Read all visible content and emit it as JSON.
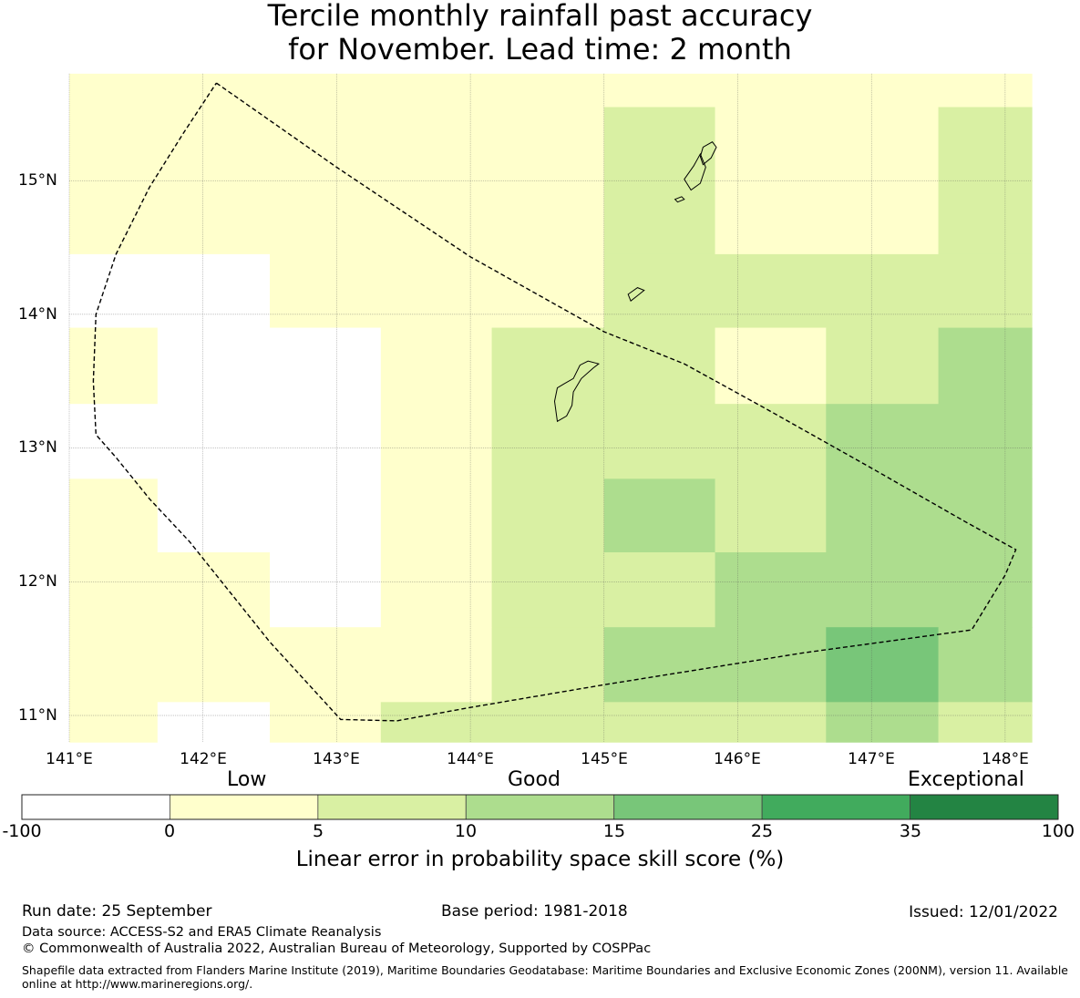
{
  "title_line1": "Tercile monthly rainfall past accuracy",
  "title_line2": "for November. Lead time: 2 month",
  "map": {
    "lon_labels": [
      "141°E",
      "142°E",
      "143°E",
      "144°E",
      "145°E",
      "146°E",
      "147°E",
      "148°E"
    ],
    "lat_labels": [
      "15°N",
      "14°N",
      "13°N",
      "12°N",
      "11°N"
    ],
    "extent": {
      "lon_min": 141.0,
      "lon_max": 148.2,
      "lat_min": 10.8,
      "lat_max": 15.8
    },
    "grid_cells": [
      {
        "lon0": 141.0,
        "lon1": 145.0,
        "lat0": 14.45,
        "lat1": 15.8,
        "score": 3
      },
      {
        "lon0": 145.0,
        "lon1": 148.2,
        "lat0": 15.55,
        "lat1": 15.8,
        "score": 3
      },
      {
        "lon0": 145.0,
        "lon1": 145.83,
        "lat0": 14.45,
        "lat1": 15.55,
        "score": 8
      },
      {
        "lon0": 145.83,
        "lon1": 147.5,
        "lat0": 14.45,
        "lat1": 15.55,
        "score": 3
      },
      {
        "lon0": 147.5,
        "lon1": 148.2,
        "lat0": 14.45,
        "lat1": 15.55,
        "score": 8
      },
      {
        "lon0": 141.0,
        "lon1": 142.5,
        "lat0": 13.9,
        "lat1": 14.45,
        "score": -5
      },
      {
        "lon0": 142.5,
        "lon1": 145.0,
        "lat0": 13.9,
        "lat1": 14.45,
        "score": 3
      },
      {
        "lon0": 145.0,
        "lon1": 148.2,
        "lat0": 13.9,
        "lat1": 14.45,
        "score": 8
      },
      {
        "lon0": 141.0,
        "lon1": 141.66,
        "lat0": 13.33,
        "lat1": 13.9,
        "score": 3
      },
      {
        "lon0": 141.66,
        "lon1": 143.33,
        "lat0": 13.33,
        "lat1": 13.9,
        "score": -5
      },
      {
        "lon0": 143.33,
        "lon1": 144.16,
        "lat0": 13.33,
        "lat1": 13.9,
        "score": 3
      },
      {
        "lon0": 144.16,
        "lon1": 145.83,
        "lat0": 13.33,
        "lat1": 13.9,
        "score": 8
      },
      {
        "lon0": 145.83,
        "lon1": 146.66,
        "lat0": 13.33,
        "lat1": 13.9,
        "score": 3
      },
      {
        "lon0": 146.66,
        "lon1": 147.5,
        "lat0": 13.33,
        "lat1": 13.9,
        "score": 8
      },
      {
        "lon0": 147.5,
        "lon1": 148.2,
        "lat0": 13.33,
        "lat1": 13.9,
        "score": 12
      },
      {
        "lon0": 141.0,
        "lon1": 143.33,
        "lat0": 12.77,
        "lat1": 13.33,
        "score": -5
      },
      {
        "lon0": 143.33,
        "lon1": 144.16,
        "lat0": 12.77,
        "lat1": 13.33,
        "score": 3
      },
      {
        "lon0": 144.16,
        "lon1": 146.66,
        "lat0": 12.77,
        "lat1": 13.33,
        "score": 8
      },
      {
        "lon0": 146.66,
        "lon1": 148.2,
        "lat0": 12.77,
        "lat1": 13.33,
        "score": 12
      },
      {
        "lon0": 141.0,
        "lon1": 141.66,
        "lat0": 12.22,
        "lat1": 12.77,
        "score": 3
      },
      {
        "lon0": 141.66,
        "lon1": 143.33,
        "lat0": 12.22,
        "lat1": 12.77,
        "score": -5
      },
      {
        "lon0": 143.33,
        "lon1": 144.16,
        "lat0": 12.22,
        "lat1": 12.77,
        "score": 3
      },
      {
        "lon0": 144.16,
        "lon1": 145.0,
        "lat0": 12.22,
        "lat1": 12.77,
        "score": 8
      },
      {
        "lon0": 145.0,
        "lon1": 145.83,
        "lat0": 12.22,
        "lat1": 12.77,
        "score": 12
      },
      {
        "lon0": 145.83,
        "lon1": 146.66,
        "lat0": 12.22,
        "lat1": 12.77,
        "score": 8
      },
      {
        "lon0": 146.66,
        "lon1": 148.2,
        "lat0": 12.22,
        "lat1": 12.77,
        "score": 12
      },
      {
        "lon0": 141.0,
        "lon1": 142.5,
        "lat0": 11.66,
        "lat1": 12.22,
        "score": 3
      },
      {
        "lon0": 142.5,
        "lon1": 143.33,
        "lat0": 11.66,
        "lat1": 12.22,
        "score": -5
      },
      {
        "lon0": 143.33,
        "lon1": 144.16,
        "lat0": 11.66,
        "lat1": 12.22,
        "score": 3
      },
      {
        "lon0": 144.16,
        "lon1": 145.83,
        "lat0": 11.66,
        "lat1": 12.22,
        "score": 8
      },
      {
        "lon0": 145.83,
        "lon1": 148.2,
        "lat0": 11.66,
        "lat1": 12.22,
        "score": 12
      },
      {
        "lon0": 141.0,
        "lon1": 144.16,
        "lat0": 11.1,
        "lat1": 11.66,
        "score": 3
      },
      {
        "lon0": 144.16,
        "lon1": 145.0,
        "lat0": 11.1,
        "lat1": 11.66,
        "score": 8
      },
      {
        "lon0": 145.0,
        "lon1": 146.66,
        "lat0": 11.1,
        "lat1": 11.66,
        "score": 12
      },
      {
        "lon0": 146.66,
        "lon1": 147.5,
        "lat0": 11.1,
        "lat1": 11.66,
        "score": 20
      },
      {
        "lon0": 147.5,
        "lon1": 148.2,
        "lat0": 11.1,
        "lat1": 11.66,
        "score": 12
      },
      {
        "lon0": 141.0,
        "lon1": 141.66,
        "lat0": 10.8,
        "lat1": 11.1,
        "score": 3
      },
      {
        "lon0": 141.66,
        "lon1": 142.5,
        "lat0": 10.8,
        "lat1": 11.1,
        "score": -5
      },
      {
        "lon0": 142.5,
        "lon1": 143.33,
        "lat0": 10.8,
        "lat1": 11.1,
        "score": 3
      },
      {
        "lon0": 143.33,
        "lon1": 146.66,
        "lat0": 10.8,
        "lat1": 11.1,
        "score": 8
      },
      {
        "lon0": 146.66,
        "lon1": 147.5,
        "lat0": 10.8,
        "lat1": 11.1,
        "score": 12
      },
      {
        "lon0": 147.5,
        "lon1": 148.2,
        "lat0": 10.8,
        "lat1": 11.1,
        "score": 8
      }
    ],
    "eez_boundary": [
      [
        142.1,
        15.73
      ],
      [
        143.0,
        15.1
      ],
      [
        144.0,
        14.43
      ],
      [
        145.0,
        13.87
      ],
      [
        145.6,
        13.63
      ],
      [
        146.2,
        13.3
      ],
      [
        147.0,
        12.85
      ],
      [
        147.7,
        12.45
      ],
      [
        148.08,
        12.24
      ],
      [
        148.0,
        12.05
      ],
      [
        147.75,
        11.64
      ],
      [
        146.5,
        11.47
      ],
      [
        145.0,
        11.23
      ],
      [
        144.0,
        11.06
      ],
      [
        143.45,
        10.96
      ],
      [
        143.03,
        10.97
      ],
      [
        142.5,
        11.55
      ],
      [
        141.9,
        12.3
      ],
      [
        141.6,
        12.62
      ],
      [
        141.35,
        12.93
      ],
      [
        141.2,
        13.1
      ],
      [
        141.18,
        13.5
      ],
      [
        141.2,
        14.0
      ],
      [
        141.35,
        14.45
      ],
      [
        141.6,
        14.95
      ],
      [
        141.85,
        15.35
      ],
      [
        142.1,
        15.73
      ]
    ],
    "islands": [
      [
        [
          144.65,
          13.2
        ],
        [
          144.72,
          13.24
        ],
        [
          144.76,
          13.32
        ],
        [
          144.77,
          13.42
        ],
        [
          144.83,
          13.52
        ],
        [
          144.92,
          13.6
        ],
        [
          144.96,
          13.63
        ],
        [
          144.88,
          13.65
        ],
        [
          144.82,
          13.62
        ],
        [
          144.77,
          13.52
        ],
        [
          144.7,
          13.48
        ],
        [
          144.65,
          13.45
        ],
        [
          144.63,
          13.35
        ],
        [
          144.65,
          13.2
        ]
      ],
      [
        [
          145.2,
          14.1
        ],
        [
          145.25,
          14.14
        ],
        [
          145.3,
          14.18
        ],
        [
          145.25,
          14.2
        ],
        [
          145.18,
          14.15
        ],
        [
          145.2,
          14.1
        ]
      ],
      [
        [
          145.65,
          14.93
        ],
        [
          145.72,
          14.98
        ],
        [
          145.76,
          15.1
        ],
        [
          145.72,
          15.2
        ],
        [
          145.67,
          15.11
        ],
        [
          145.6,
          15.01
        ],
        [
          145.65,
          14.93
        ]
      ],
      [
        [
          145.74,
          15.12
        ],
        [
          145.8,
          15.17
        ],
        [
          145.84,
          15.25
        ],
        [
          145.81,
          15.29
        ],
        [
          145.74,
          15.25
        ],
        [
          145.72,
          15.18
        ],
        [
          145.74,
          15.12
        ]
      ],
      [
        [
          145.55,
          14.84
        ],
        [
          145.6,
          14.86
        ],
        [
          145.58,
          14.88
        ],
        [
          145.53,
          14.86
        ],
        [
          145.55,
          14.84
        ]
      ]
    ]
  },
  "colorbar": {
    "categories": [
      "Low",
      "Good",
      "Exceptional"
    ],
    "ticks": [
      "-100",
      "0",
      "5",
      "10",
      "15",
      "25",
      "35",
      "100"
    ],
    "colors": [
      "#ffffff",
      "#ffffcc",
      "#d9f0a3",
      "#addd8e",
      "#78c679",
      "#41ab5d",
      "#238443"
    ],
    "label": "Linear error in probability space skill score (%)"
  },
  "footer": {
    "run_date": "Run date: 25 September",
    "base_period": "Base period: 1981-2018",
    "issued": "Issued: 12/01/2022",
    "data_source": "Data source: ACCESS-S2 and ERA5 Climate Reanalysis",
    "copyright": "© Commonwealth of Australia 2022, Australian Bureau of Meteorology, Supported by COSPPac",
    "shapefile": "Shapefile data extracted from Flanders Marine Institute (2019), Maritime Boundaries Geodatabase: Maritime Boundaries and Exclusive Economic Zones (200NM), version 11. Available online at http://www.marineregions.org/."
  }
}
